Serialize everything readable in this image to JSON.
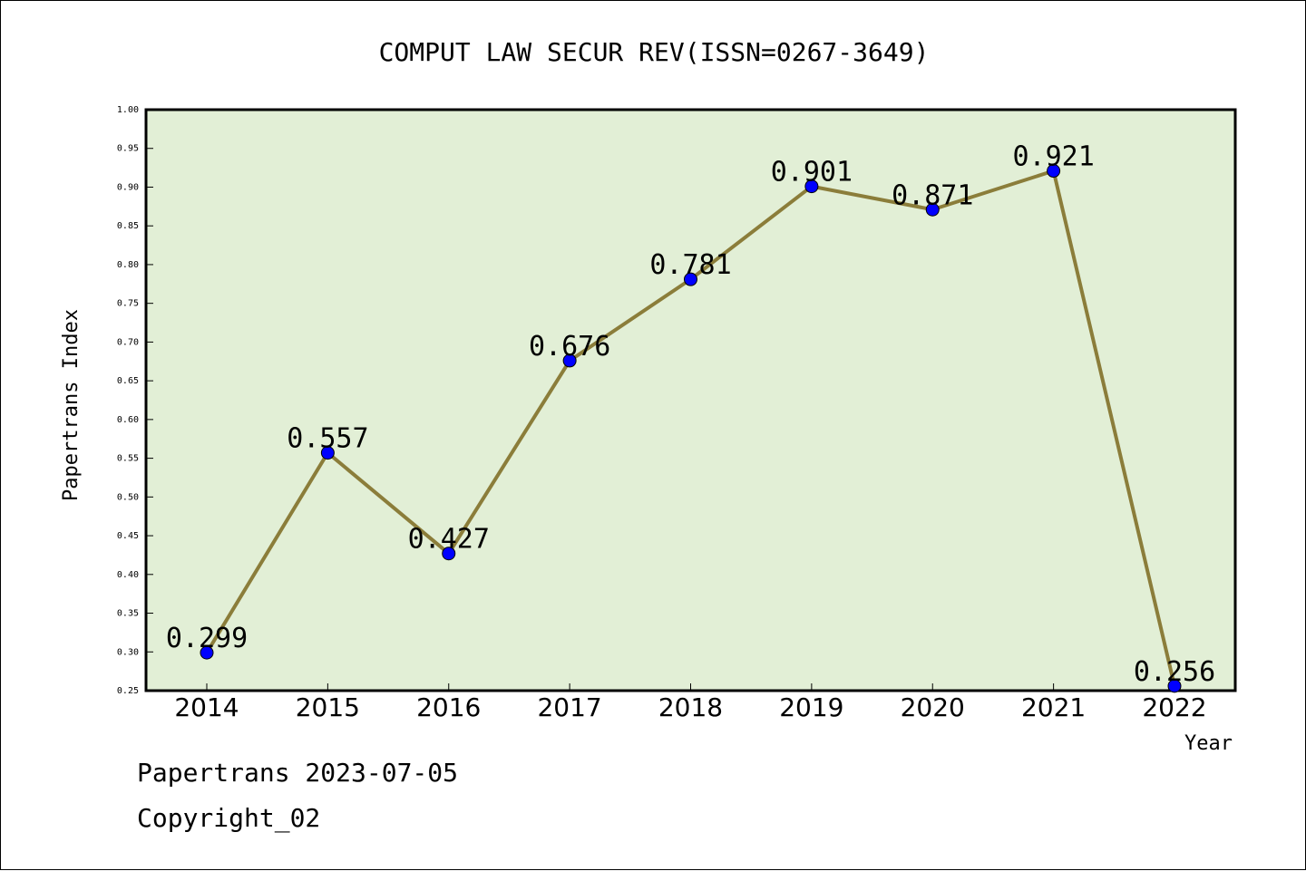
{
  "chart_data": {
    "type": "line",
    "title": "COMPUT LAW SECUR REV(ISSN=0267-3649)",
    "xlabel": "Year",
    "ylabel": "Papertrans Index",
    "categories": [
      "2014",
      "2015",
      "2016",
      "2017",
      "2018",
      "2019",
      "2020",
      "2021",
      "2022"
    ],
    "values": [
      0.299,
      0.557,
      0.427,
      0.676,
      0.781,
      0.901,
      0.871,
      0.921,
      0.256
    ],
    "data_labels": [
      "0.299",
      "0.557",
      "0.427",
      "0.676",
      "0.781",
      "0.901",
      "0.871",
      "0.921",
      "0.256"
    ],
    "ylim": [
      0.25,
      1.0
    ],
    "yticks": [
      "0.25",
      "0.30",
      "0.35",
      "0.40",
      "0.45",
      "0.50",
      "0.55",
      "0.60",
      "0.65",
      "0.70",
      "0.75",
      "0.80",
      "0.85",
      "0.90",
      "0.95",
      "1.00"
    ],
    "grid": false,
    "legend": "none",
    "colors": {
      "plot_background": "#e2efd6",
      "line": "#8b7d3a",
      "marker": "#0000ff"
    }
  },
  "footer": {
    "line1": "Papertrans 2023-07-05",
    "line2": "Copyright_02"
  }
}
